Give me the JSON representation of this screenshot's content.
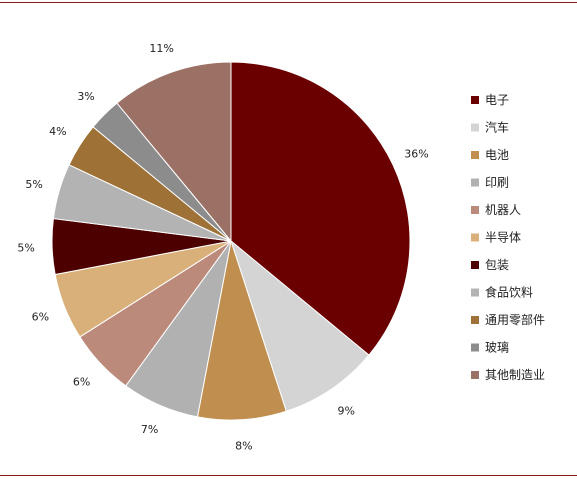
{
  "chart_data": {
    "type": "pie",
    "title": "",
    "legend_placement": "right",
    "slices": [
      {
        "label": "电子",
        "value": 36,
        "value_label": "36%",
        "color": "#6b0000"
      },
      {
        "label": "汽车",
        "value": 9,
        "value_label": "9%",
        "color": "#d4d4d4"
      },
      {
        "label": "电池",
        "value": 8,
        "value_label": "8%",
        "color": "#c08f4f"
      },
      {
        "label": "印刷",
        "value": 7,
        "value_label": "7%",
        "color": "#b1b1b1"
      },
      {
        "label": "机器人",
        "value": 6,
        "value_label": "6%",
        "color": "#bc8a7a"
      },
      {
        "label": "半导体",
        "value": 6,
        "value_label": "6%",
        "color": "#d9b07a"
      },
      {
        "label": "包装",
        "value": 5,
        "value_label": "5%",
        "color": "#4d0000"
      },
      {
        "label": "食品饮料",
        "value": 5,
        "value_label": "5%",
        "color": "#b3b3b3"
      },
      {
        "label": "通用零部件",
        "value": 4,
        "value_label": "4%",
        "color": "#9e7137"
      },
      {
        "label": "玻璃",
        "value": 3,
        "value_label": "3%",
        "color": "#8c8c8c"
      },
      {
        "label": "其他制造业",
        "value": 11,
        "value_label": "11%",
        "color": "#9b7166"
      }
    ]
  }
}
